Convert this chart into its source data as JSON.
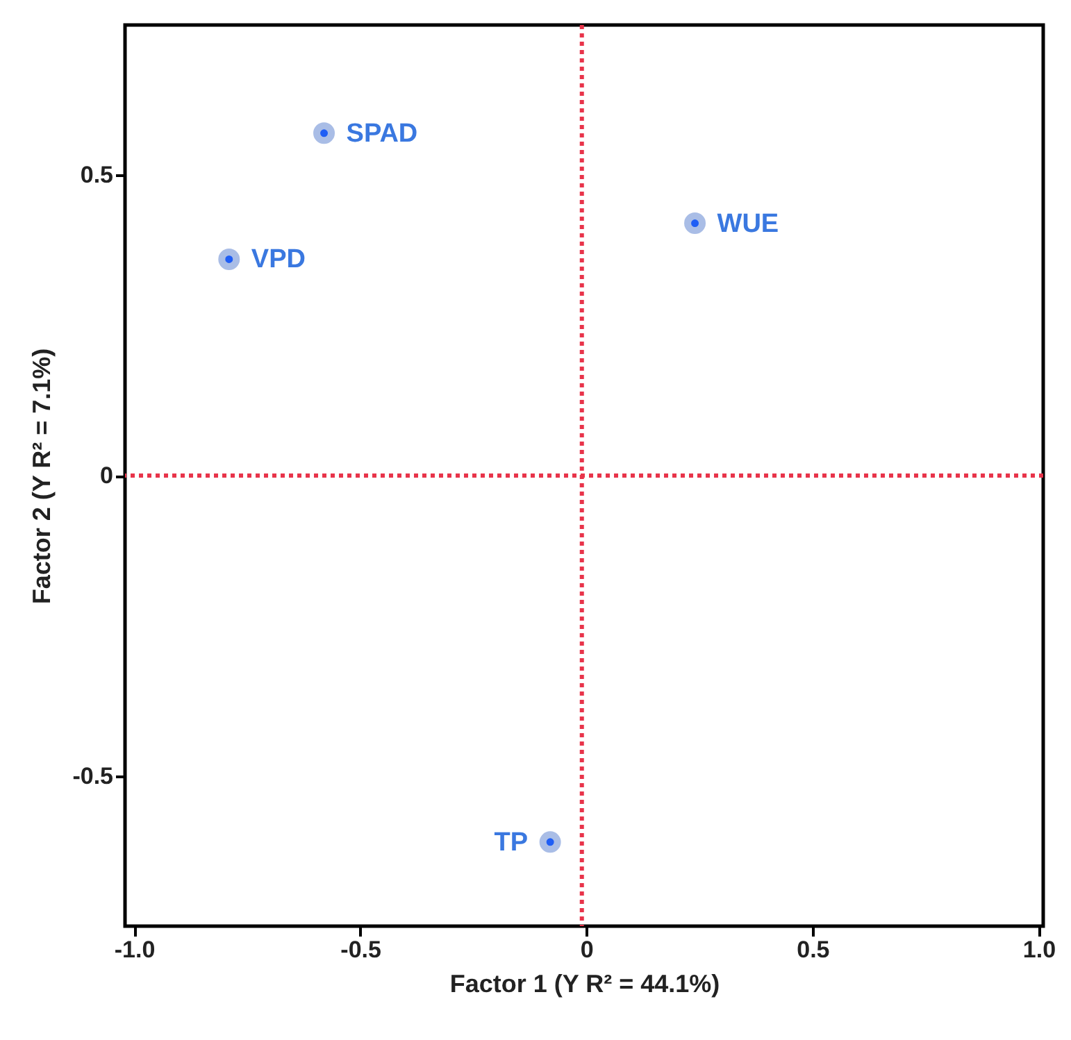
{
  "chart_data": {
    "type": "scatter",
    "xlabel": "Factor 1 (Y R² = 44.1%)",
    "ylabel": "Factor 2 (Y R² = 7.1%)",
    "x": [
      -0.58,
      -0.79,
      0.24,
      -0.08
    ],
    "series": [
      {
        "color": "#1f5ef5",
        "values": [
          0.57,
          0.36,
          0.42,
          -0.61
        ]
      }
    ],
    "annotations": [
      {
        "text": "SPAD",
        "x": -0.58,
        "y": 0.57
      },
      {
        "text": "VPD",
        "x": -0.79,
        "y": 0.36
      },
      {
        "text": "WUE",
        "x": 0.24,
        "y": 0.42
      },
      {
        "text": "TP",
        "x": -0.08,
        "y": -0.61
      }
    ],
    "xlim": [
      -1.02,
      1.01
    ],
    "ylim": [
      -0.75,
      0.75
    ],
    "xticks": [
      {
        "value": -1,
        "label": "-1.0"
      },
      -0.5,
      0,
      0.5,
      {
        "value": 1,
        "label": "1.0"
      }
    ],
    "yticks": [
      -0.5,
      0,
      0.5
    ],
    "ref_lines": [
      {
        "axis": "x",
        "value": -0.01,
        "color": "#e8344a",
        "line_style": "dotted"
      },
      {
        "axis": "y",
        "value": 0,
        "color": "#e8344a",
        "line_style": "dotted"
      }
    ],
    "marker": "circle",
    "grid": false
  }
}
